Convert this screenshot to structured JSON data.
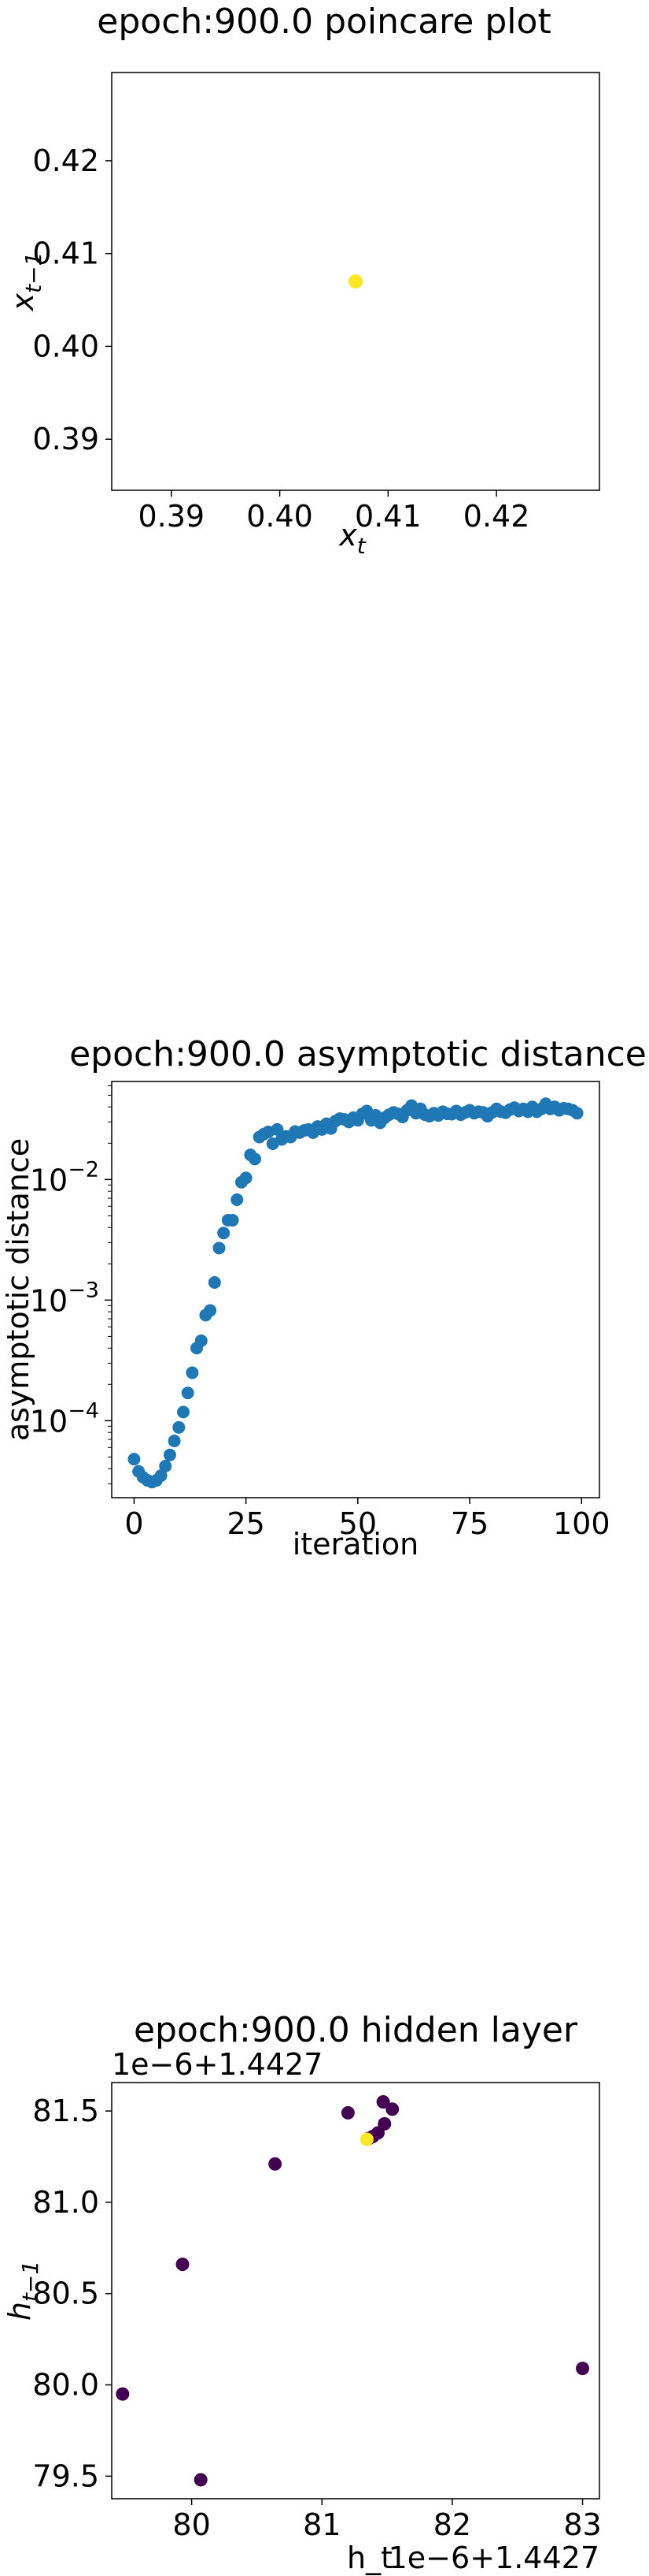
{
  "chart_data": [
    {
      "type": "scatter",
      "title": "epoch:900.0 poincare plot",
      "xlabel": "x_t",
      "ylabel": "x_{t-1}",
      "xlim": [
        0.3845,
        0.4295
      ],
      "ylim": [
        0.3845,
        0.4295
      ],
      "xticks": [
        0.39,
        0.4,
        0.41,
        0.42
      ],
      "yticks": [
        0.39,
        0.4,
        0.41,
        0.42
      ],
      "xtick_labels": [
        "0.39",
        "0.40",
        "0.41",
        "0.42"
      ],
      "ytick_labels": [
        "0.39",
        "0.40",
        "0.41",
        "0.42"
      ],
      "points": [
        {
          "x": 0.407,
          "y": 0.407,
          "color": "#fde725"
        }
      ],
      "grid": false
    },
    {
      "type": "scatter",
      "title": "epoch:900.0 asymptotic distance",
      "xlabel": "iteration",
      "ylabel": "asymptotic distance",
      "yscale": "log",
      "xlim": [
        -5,
        104
      ],
      "ylim": [
        2.3e-05,
        0.065
      ],
      "xticks": [
        0,
        25,
        50,
        75,
        100
      ],
      "xtick_labels": [
        "0",
        "25",
        "50",
        "75",
        "100"
      ],
      "yticks": [
        0.0001,
        0.001,
        0.01
      ],
      "ytick_labels": [
        "10",
        "10",
        "10"
      ],
      "ytick_exponents": [
        "−4",
        "−3",
        "−2"
      ],
      "color": "#1f77b4",
      "x": [
        0,
        1,
        2,
        3,
        4,
        5,
        6,
        7,
        8,
        9,
        10,
        11,
        12,
        13,
        14,
        15,
        16,
        17,
        18,
        19,
        20,
        21,
        22,
        23,
        24,
        25,
        26,
        27,
        28,
        29,
        30,
        31,
        32,
        33,
        34,
        35,
        36,
        37,
        38,
        39,
        40,
        41,
        42,
        43,
        44,
        45,
        46,
        47,
        48,
        49,
        50,
        51,
        52,
        53,
        54,
        55,
        56,
        57,
        58,
        59,
        60,
        61,
        62,
        63,
        64,
        65,
        66,
        67,
        68,
        69,
        70,
        71,
        72,
        73,
        74,
        75,
        76,
        77,
        78,
        79,
        80,
        81,
        82,
        83,
        84,
        85,
        86,
        87,
        88,
        89,
        90,
        91,
        92,
        93,
        94,
        95,
        96,
        97,
        98,
        99
      ],
      "y": [
        4.8e-05,
        3.8e-05,
        3.4e-05,
        3.2e-05,
        3.1e-05,
        3.2e-05,
        3.5e-05,
        4.2e-05,
        5.2e-05,
        6.8e-05,
        8.8e-05,
        0.000118,
        0.00017,
        0.00025,
        0.0004,
        0.00046,
        0.00075,
        0.00082,
        0.0014,
        0.0027,
        0.0036,
        0.0046,
        0.0046,
        0.0068,
        0.0095,
        0.0103,
        0.016,
        0.0148,
        0.0225,
        0.0238,
        0.0248,
        0.0198,
        0.026,
        0.0215,
        0.0228,
        0.0225,
        0.025,
        0.0245,
        0.0255,
        0.026,
        0.0245,
        0.0275,
        0.026,
        0.029,
        0.0265,
        0.0305,
        0.032,
        0.0315,
        0.03,
        0.0325,
        0.031,
        0.035,
        0.037,
        0.031,
        0.034,
        0.0295,
        0.0325,
        0.0345,
        0.036,
        0.035,
        0.033,
        0.0375,
        0.041,
        0.0355,
        0.0385,
        0.0345,
        0.0335,
        0.0355,
        0.034,
        0.0365,
        0.035,
        0.0348,
        0.037,
        0.0345,
        0.036,
        0.0375,
        0.0355,
        0.0365,
        0.036,
        0.0335,
        0.036,
        0.0385,
        0.0365,
        0.0358,
        0.038,
        0.0395,
        0.037,
        0.0385,
        0.0365,
        0.04,
        0.0365,
        0.0385,
        0.0425,
        0.0385,
        0.04,
        0.0375,
        0.039,
        0.0385,
        0.0375,
        0.0355
      ],
      "grid": false
    },
    {
      "type": "scatter",
      "title": "epoch:900.0 hidden layer",
      "xlabel": "h_t",
      "ylabel": "h_{t-1}",
      "x_offset_label": "1e−6+1.4427",
      "y_offset_label": "1e−6+1.4427",
      "xlim": [
        79.3866,
        83.1296
      ],
      "ylim": [
        79.3762,
        81.6559
      ],
      "xticks": [
        80,
        81,
        82,
        83
      ],
      "xtick_labels": [
        "80",
        "81",
        "82",
        "83"
      ],
      "yticks": [
        79.5,
        80.0,
        80.5,
        81.0,
        81.5
      ],
      "ytick_labels": [
        "79.5",
        "80.0",
        "80.5",
        "81.0",
        "81.5"
      ],
      "points": [
        {
          "x": 79.47,
          "y": 79.95,
          "color": "#440154"
        },
        {
          "x": 80.07,
          "y": 79.48,
          "color": "#440154"
        },
        {
          "x": 79.93,
          "y": 80.66,
          "color": "#440154"
        },
        {
          "x": 83.0,
          "y": 80.09,
          "color": "#440154"
        },
        {
          "x": 80.64,
          "y": 81.21,
          "color": "#440154"
        },
        {
          "x": 81.2,
          "y": 81.49,
          "color": "#440154"
        },
        {
          "x": 81.47,
          "y": 81.55,
          "color": "#440154"
        },
        {
          "x": 81.54,
          "y": 81.51,
          "color": "#440154"
        },
        {
          "x": 81.48,
          "y": 81.43,
          "color": "#440154"
        },
        {
          "x": 81.43,
          "y": 81.38,
          "color": "#440154"
        },
        {
          "x": 81.39,
          "y": 81.36,
          "color": "#440154"
        },
        {
          "x": 81.36,
          "y": 81.35,
          "color": "#440154"
        },
        {
          "x": 81.345,
          "y": 81.345,
          "color": "#fde725"
        }
      ],
      "grid": false
    }
  ]
}
